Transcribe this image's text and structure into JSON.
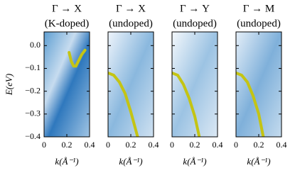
{
  "chart_data": [
    {
      "type": "line",
      "title": "Γ → X",
      "subtitle": "(K-doped)",
      "ylabel": "E(eV)",
      "xlabel": "k(Å⁻¹)",
      "xlim": [
        0,
        0.4
      ],
      "ylim": [
        -0.4,
        0.06
      ],
      "xticks": [
        0,
        0.2,
        0.4
      ],
      "yticks": [
        {
          "value": 0.0,
          "label": "0.0"
        },
        {
          "value": -0.1,
          "label": "−0.1"
        },
        {
          "value": -0.2,
          "label": "−0.2"
        },
        {
          "value": -0.3,
          "label": "−0.3"
        },
        {
          "value": -0.4,
          "label": "−0.4"
        }
      ],
      "x": [
        0.22,
        0.24,
        0.26,
        0.28,
        0.3,
        0.33,
        0.36
      ],
      "series": [
        {
          "color": "#c4c414",
          "values": [
            -0.03,
            -0.07,
            -0.09,
            -0.09,
            -0.07,
            -0.04,
            -0.02
          ]
        }
      ]
    },
    {
      "type": "line",
      "title": "Γ → X",
      "subtitle": "(undoped)",
      "xlabel": "k(Å⁻¹)",
      "xlim": [
        0,
        0.4
      ],
      "ylim": [
        -0.4,
        0.06
      ],
      "xticks": [
        0,
        0.2,
        0.4
      ],
      "x": [
        0,
        0.05,
        0.1,
        0.15,
        0.2,
        0.26
      ],
      "series": [
        {
          "color": "#c4c414",
          "values": [
            -0.12,
            -0.13,
            -0.16,
            -0.21,
            -0.29,
            -0.4
          ]
        }
      ]
    },
    {
      "type": "line",
      "title": "Γ → Y",
      "subtitle": "(undoped)",
      "xlabel": "k(Å⁻¹)",
      "xlim": [
        0,
        0.4
      ],
      "ylim": [
        -0.4,
        0.06
      ],
      "xticks": [
        0,
        0.2,
        0.4
      ],
      "x": [
        0,
        0.05,
        0.1,
        0.15,
        0.2,
        0.24
      ],
      "series": [
        {
          "color": "#c4c414",
          "values": [
            -0.12,
            -0.13,
            -0.17,
            -0.23,
            -0.31,
            -0.4
          ]
        }
      ]
    },
    {
      "type": "line",
      "title": "Γ → M",
      "subtitle": "(undoped)",
      "xlabel": "k(Å⁻¹)",
      "xlim": [
        0,
        0.4
      ],
      "ylim": [
        -0.4,
        0.06
      ],
      "xticks": [
        0,
        0.2,
        0.4
      ],
      "x": [
        0,
        0.05,
        0.1,
        0.15,
        0.2,
        0.24
      ],
      "series": [
        {
          "color": "#c4c414",
          "values": [
            -0.12,
            -0.13,
            -0.16,
            -0.22,
            -0.3,
            -0.4
          ]
        }
      ]
    }
  ]
}
